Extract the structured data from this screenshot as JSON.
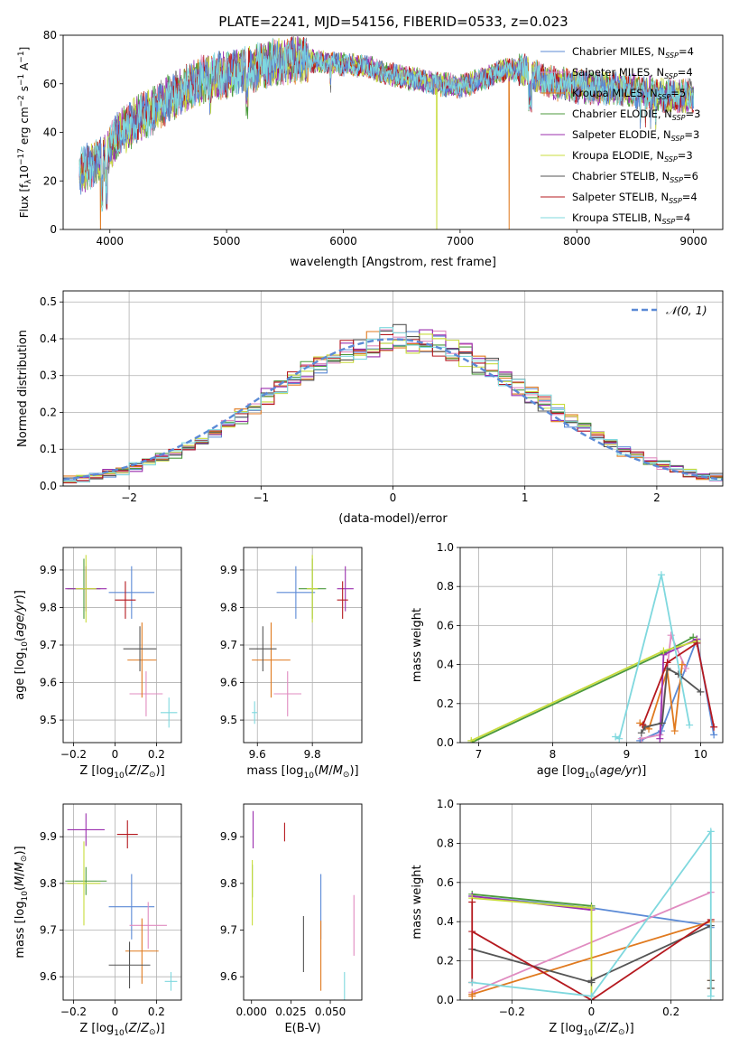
{
  "figure_title": "PLATE=2241, MJD=54156, FIBERID=0533, z=0.023",
  "series_colors": [
    "#5b8ad6",
    "#e08bc0",
    "#e07a1f",
    "#4c9a3c",
    "#9b2fae",
    "#c8dc3c",
    "#555555",
    "#b5191f",
    "#7fd8de"
  ],
  "chart_data": [
    {
      "type": "line",
      "title": "PLATE=2241, MJD=54156, FIBERID=0533, z=0.023",
      "xlabel": "wavelength [Angstrom, rest frame]",
      "ylabel": "Flux [fλ10⁻¹⁷ erg cm⁻² s⁻¹ A⁻¹]",
      "xlim": [
        3600,
        9250
      ],
      "ylim": [
        0,
        80
      ],
      "xticks": [
        4000,
        5000,
        6000,
        7000,
        8000,
        9000
      ],
      "yticks": [
        0,
        20,
        40,
        60,
        80
      ],
      "legend": "top-right",
      "series": [
        {
          "name": "Chabrier MILES, N_SSP=4"
        },
        {
          "name": "Salpeter MILES, N_SSP=4"
        },
        {
          "name": "Kroupa MILES, N_SSP=5"
        },
        {
          "name": "Chabrier ELODIE, N_SSP=3"
        },
        {
          "name": "Salpeter ELODIE, N_SSP=3"
        },
        {
          "name": "Kroupa ELODIE, N_SSP=3"
        },
        {
          "name": "Chabrier STELIB, N_SSP=6"
        },
        {
          "name": "Salpeter STELIB, N_SSP=4"
        },
        {
          "name": "Kroupa STELIB, N_SSP=4"
        }
      ],
      "envelope": {
        "wavelength": [
          3750,
          3850,
          3950,
          4050,
          4200,
          4400,
          4600,
          4800,
          5000,
          5200,
          5400,
          5600,
          5800,
          6000,
          6200,
          6400,
          6600,
          6800,
          7000,
          7200,
          7400,
          7600,
          7800,
          8000,
          8200,
          8400,
          8600,
          8800,
          9000
        ],
        "flux": [
          24,
          27,
          30,
          38,
          44,
          50,
          57,
          62,
          64,
          66,
          69,
          70,
          69,
          68,
          67,
          64,
          62,
          60,
          59,
          62,
          66,
          65,
          60,
          59,
          58,
          58,
          56,
          55,
          55
        ]
      },
      "dropouts": [
        {
          "series": "Kroupa MILES, N_SSP=5",
          "wavelength": 3920
        },
        {
          "series": "Kroupa ELODIE, N_SSP=3",
          "wavelength": 6800
        },
        {
          "series": "Kroupa MILES, N_SSP=5",
          "wavelength": 7420
        }
      ]
    },
    {
      "type": "histogram",
      "xlabel": "(data-model)/error",
      "ylabel": "Normed distribution",
      "xlim": [
        -2.5,
        2.5
      ],
      "ylim": [
        0,
        0.53
      ],
      "xticks": [
        -2,
        -1,
        0,
        1,
        2
      ],
      "yticks": [
        0.0,
        0.1,
        0.2,
        0.3,
        0.4,
        0.5
      ],
      "grid": true,
      "legend": "top-right",
      "reference": {
        "name": "𝒩(0, 1)",
        "mean": 0,
        "sigma": 1
      },
      "bin_width": 0.1
    },
    {
      "type": "scatter",
      "xlabel": "Z [log10(Z/Z⊙)]",
      "ylabel": "age [log10(age/yr)]",
      "xlim": [
        -0.25,
        0.32
      ],
      "ylim": [
        9.44,
        9.96
      ],
      "xticks": [
        -0.2,
        0.0,
        0.2
      ],
      "yticks": [
        9.5,
        9.6,
        9.7,
        9.8,
        9.9
      ],
      "grid": true,
      "points": [
        {
          "x": 0.08,
          "y": 9.84,
          "xerr": 0.11,
          "yerr": 0.07
        },
        {
          "x": 0.15,
          "y": 9.57,
          "xerr": 0.08,
          "yerr": 0.06
        },
        {
          "x": 0.13,
          "y": 9.66,
          "xerr": 0.07,
          "yerr": 0.1
        },
        {
          "x": -0.15,
          "y": 9.85,
          "xerr": 0.08,
          "yerr": 0.08
        },
        {
          "x": -0.14,
          "y": 9.85,
          "xerr": 0.1,
          "yerr": 0.06
        },
        {
          "x": -0.14,
          "y": 9.85,
          "xerr": 0.05,
          "yerr": 0.09
        },
        {
          "x": 0.12,
          "y": 9.69,
          "xerr": 0.08,
          "yerr": 0.06
        },
        {
          "x": 0.05,
          "y": 9.82,
          "xerr": 0.05,
          "yerr": 0.05
        },
        {
          "x": 0.26,
          "y": 9.52,
          "xerr": 0.04,
          "yerr": 0.04
        }
      ]
    },
    {
      "type": "scatter",
      "xlabel": "mass [log10(M/M⊙)]",
      "ylabel": "",
      "xlim": [
        9.55,
        9.98
      ],
      "ylim": [
        9.44,
        9.96
      ],
      "xticks": [
        9.6,
        9.8
      ],
      "yticks": [
        9.5,
        9.6,
        9.7,
        9.8,
        9.9
      ],
      "grid": true,
      "points": [
        {
          "x": 9.74,
          "y": 9.84,
          "xerr": 0.07,
          "yerr": 0.07
        },
        {
          "x": 9.71,
          "y": 9.57,
          "xerr": 0.05,
          "yerr": 0.06
        },
        {
          "x": 9.65,
          "y": 9.66,
          "xerr": 0.07,
          "yerr": 0.1
        },
        {
          "x": 9.8,
          "y": 9.85,
          "xerr": 0.05,
          "yerr": 0.08
        },
        {
          "x": 9.92,
          "y": 9.85,
          "xerr": 0.03,
          "yerr": 0.06
        },
        {
          "x": 9.8,
          "y": 9.85,
          "xerr": 0.02,
          "yerr": 0.09
        },
        {
          "x": 9.62,
          "y": 9.69,
          "xerr": 0.05,
          "yerr": 0.06
        },
        {
          "x": 9.91,
          "y": 9.82,
          "xerr": 0.02,
          "yerr": 0.05
        },
        {
          "x": 9.59,
          "y": 9.52,
          "xerr": 0.01,
          "yerr": 0.03
        }
      ]
    },
    {
      "type": "line",
      "xlabel": "age [log10(age/yr)]",
      "ylabel": "mass weight",
      "xlim": [
        6.75,
        10.3
      ],
      "ylim": [
        0,
        1.0
      ],
      "xticks": [
        7,
        8,
        9,
        10
      ],
      "yticks": [
        0.0,
        0.2,
        0.4,
        0.6,
        0.8,
        1.0
      ],
      "grid": true,
      "series": [
        {
          "x": [
            9.18,
            9.47,
            9.95,
            10.18
          ],
          "y": [
            0.01,
            0.06,
            0.53,
            0.04
          ]
        },
        {
          "x": [
            9.2,
            9.45,
            9.6,
            9.8
          ],
          "y": [
            0.02,
            0.04,
            0.55,
            0.38
          ]
        },
        {
          "x": [
            9.18,
            9.3,
            9.55,
            9.65,
            9.75
          ],
          "y": [
            0.1,
            0.07,
            0.37,
            0.06,
            0.4
          ]
        },
        {
          "x": [
            6.9,
            9.5,
            9.9
          ],
          "y": [
            0.0,
            0.46,
            0.54
          ]
        },
        {
          "x": [
            9.45,
            9.5,
            9.95
          ],
          "y": [
            0.02,
            0.45,
            0.53
          ]
        },
        {
          "x": [
            6.9,
            9.5,
            9.95
          ],
          "y": [
            0.01,
            0.47,
            0.52
          ]
        },
        {
          "x": [
            9.2,
            9.25,
            9.48,
            9.55,
            9.7,
            10.0
          ],
          "y": [
            0.05,
            0.08,
            0.1,
            0.38,
            0.35,
            0.26
          ]
        },
        {
          "x": [
            9.22,
            9.55,
            9.95,
            10.18
          ],
          "y": [
            0.09,
            0.41,
            0.51,
            0.08
          ]
        },
        {
          "x": [
            8.85,
            8.9,
            9.47,
            9.85
          ],
          "y": [
            0.03,
            0.02,
            0.86,
            0.09
          ]
        }
      ]
    },
    {
      "type": "scatter",
      "xlabel": "Z [log10(Z/Z⊙)]",
      "ylabel": "mass [log10(M/M⊙)]",
      "xlim": [
        -0.25,
        0.32
      ],
      "ylim": [
        9.55,
        9.97
      ],
      "xticks": [
        -0.2,
        0.0,
        0.2
      ],
      "yticks": [
        9.6,
        9.7,
        9.8,
        9.9
      ],
      "grid": true,
      "points": [
        {
          "x": 0.08,
          "y": 9.75,
          "xerr": 0.11,
          "yerr": 0.07
        },
        {
          "x": 0.16,
          "y": 9.71,
          "xerr": 0.09,
          "yerr": 0.05
        },
        {
          "x": 0.13,
          "y": 9.655,
          "xerr": 0.08,
          "yerr": 0.07
        },
        {
          "x": -0.14,
          "y": 9.805,
          "xerr": 0.1,
          "yerr": 0.03
        },
        {
          "x": -0.14,
          "y": 9.915,
          "xerr": 0.09,
          "yerr": 0.035
        },
        {
          "x": -0.15,
          "y": 9.8,
          "xerr": 0.08,
          "yerr": 0.09
        },
        {
          "x": 0.07,
          "y": 9.625,
          "xerr": 0.1,
          "yerr": 0.05
        },
        {
          "x": 0.06,
          "y": 9.905,
          "xerr": 0.05,
          "yerr": 0.03
        },
        {
          "x": 0.27,
          "y": 9.59,
          "xerr": 0.03,
          "yerr": 0.02
        }
      ]
    },
    {
      "type": "scatter",
      "xlabel": "E(B-V)",
      "ylabel": "",
      "xlim": [
        -0.005,
        0.07
      ],
      "ylim": [
        9.55,
        9.97
      ],
      "xticks": [
        0.0,
        0.025,
        0.05
      ],
      "xticklabels": [
        "0.000",
        "0.025",
        "0.050"
      ],
      "yticks": [
        9.6,
        9.7,
        9.8,
        9.9
      ],
      "points": [
        {
          "x": 0.044,
          "y": 9.75,
          "yerr": 0.07
        },
        {
          "x": 0.065,
          "y": 9.71,
          "yerr": 0.065
        },
        {
          "x": 0.044,
          "y": 9.645,
          "yerr": 0.075
        },
        {
          "x": 0.0005,
          "y": 9.805,
          "yerr": 0.035
        },
        {
          "x": 0.001,
          "y": 9.915,
          "yerr": 0.04
        },
        {
          "x": 0.0005,
          "y": 9.78,
          "yerr": 0.07
        },
        {
          "x": 0.033,
          "y": 9.67,
          "yerr": 0.06
        },
        {
          "x": 0.021,
          "y": 9.91,
          "yerr": 0.02
        },
        {
          "x": 0.059,
          "y": 9.58,
          "yerr": 0.03
        }
      ]
    },
    {
      "type": "line",
      "xlabel": "Z [log10(Z/Z⊙)]",
      "ylabel": "mass weight",
      "xlim": [
        -0.33,
        0.33
      ],
      "ylim": [
        0,
        1.0
      ],
      "xticks": [
        -0.2,
        0.0,
        0.2
      ],
      "yticks": [
        0.0,
        0.2,
        0.4,
        0.6,
        0.8,
        1.0
      ],
      "grid": true,
      "series": [
        {
          "x": [
            -0.3,
            0.0,
            0.3,
            0.3
          ],
          "y": [
            0.53,
            0.47,
            0.38,
            0.37
          ]
        },
        {
          "x": [
            -0.3,
            -0.3,
            0.3
          ],
          "y": [
            0.03,
            0.04,
            0.55
          ]
        },
        {
          "x": [
            -0.3,
            -0.3,
            0.3,
            0.3,
            0.3
          ],
          "y": [
            0.02,
            0.03,
            0.4,
            0.06,
            0.1
          ]
        },
        {
          "x": [
            -0.3,
            0.0,
            0.0
          ],
          "y": [
            0.54,
            0.48,
            0.47
          ]
        },
        {
          "x": [
            -0.3,
            0.0,
            0.0
          ],
          "y": [
            0.53,
            0.46,
            0.47
          ]
        },
        {
          "x": [
            -0.3,
            0.0,
            0.0
          ],
          "y": [
            0.52,
            0.47,
            0.02
          ]
        },
        {
          "x": [
            -0.3,
            0.0,
            0.0,
            0.3,
            0.3,
            0.3
          ],
          "y": [
            0.26,
            0.09,
            0.1,
            0.38,
            0.1,
            0.06
          ]
        },
        {
          "x": [
            -0.3,
            -0.3,
            -0.3,
            0.0,
            0.3
          ],
          "y": [
            0.09,
            0.5,
            0.35,
            0.0,
            0.41
          ]
        },
        {
          "x": [
            -0.3,
            0.0,
            0.3,
            0.3
          ],
          "y": [
            0.09,
            0.02,
            0.86,
            0.02
          ]
        }
      ]
    }
  ]
}
